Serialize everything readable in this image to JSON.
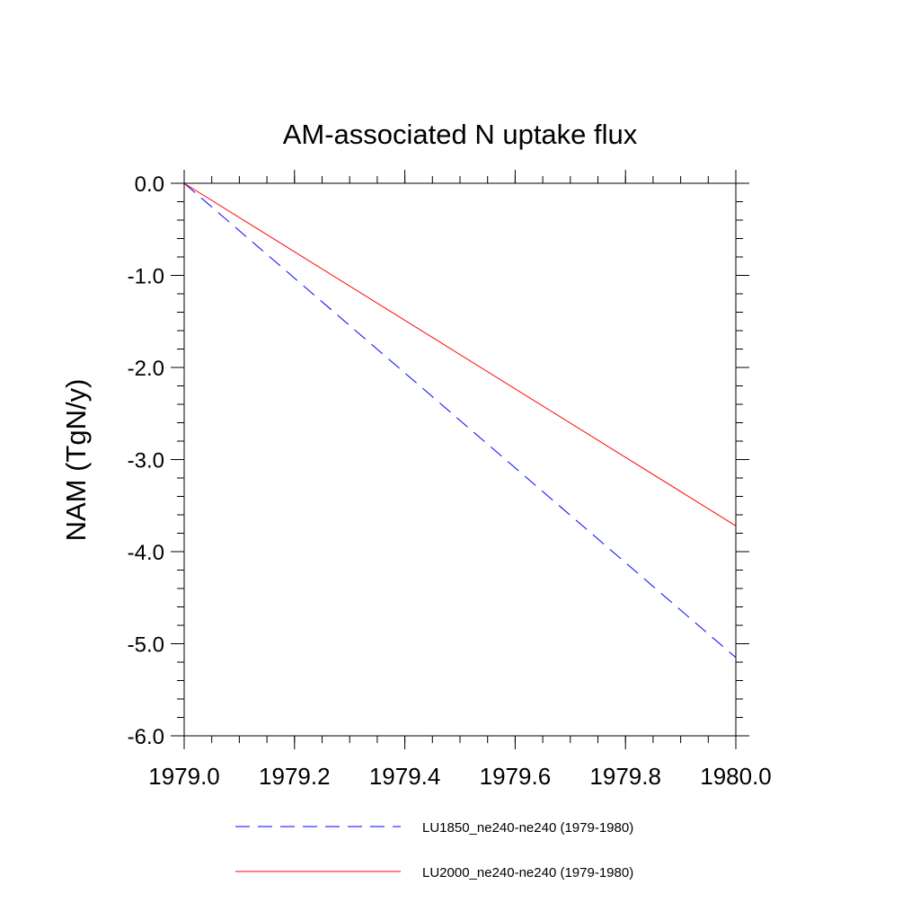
{
  "chart_data": {
    "type": "line",
    "title": "AM-associated N uptake flux",
    "ylabel": "NAM  (TgN/y)",
    "xlabel": "",
    "xlim": [
      1979.0,
      1980.0
    ],
    "ylim": [
      -6.0,
      0.0
    ],
    "x_ticks": [
      1979.0,
      1979.2,
      1979.4,
      1979.6,
      1979.8,
      1980.0
    ],
    "x_tick_labels": [
      "1979.0",
      "1979.2",
      "1979.4",
      "1979.6",
      "1979.8",
      "1980.0"
    ],
    "y_ticks": [
      0.0,
      -1.0,
      -2.0,
      -3.0,
      -4.0,
      -5.0,
      -6.0
    ],
    "y_tick_labels": [
      "0.0",
      "-1.0",
      "-2.0",
      "-3.0",
      "-4.0",
      "-5.0",
      "-6.0"
    ],
    "grid": false,
    "legend_position": "bottom",
    "series": [
      {
        "name": "LU1850_ne240-ne240 (1979-1980)",
        "x": [
          1979.0,
          1980.0
        ],
        "y": [
          0.0,
          -5.15
        ],
        "color": "#0000ff",
        "style": "dashed"
      },
      {
        "name": "LU2000_ne240-ne240 (1979-1980)",
        "x": [
          1979.0,
          1980.0
        ],
        "y": [
          0.0,
          -3.72
        ],
        "color": "#ff0000",
        "style": "solid"
      }
    ]
  }
}
